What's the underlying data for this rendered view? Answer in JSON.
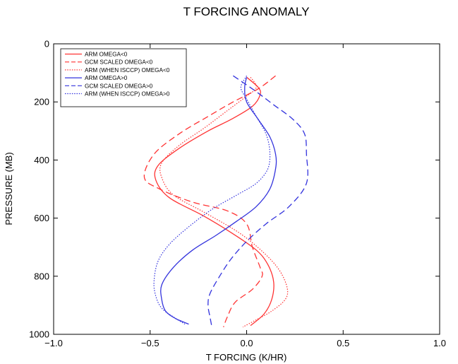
{
  "chart_data": {
    "type": "line",
    "title": "T FORCING ANOMALY",
    "xlabel": "T FORCING (K/HR)",
    "ylabel": "PRESSURE (MB)",
    "xlim": [
      -1.0,
      1.0
    ],
    "ylim": [
      0,
      1000
    ],
    "y_inverted": true,
    "x_ticks": [
      -1.0,
      -0.5,
      0.0,
      0.5,
      1.0
    ],
    "x_tick_labels": [
      "−1.0",
      "−0.5",
      "0.0",
      "0.5",
      "1.0"
    ],
    "y_ticks": [
      0,
      200,
      400,
      600,
      800,
      1000
    ],
    "y_tick_labels": [
      "0",
      "200",
      "400",
      "600",
      "800",
      "1000"
    ],
    "grid": false,
    "legend_position": "top-left",
    "series": [
      {
        "name": "ARM  OMEGA<0",
        "color": "#ff3333",
        "dash": "solid",
        "points": [
          [
            0.0,
            115
          ],
          [
            0.06,
            150
          ],
          [
            0.07,
            175
          ],
          [
            0.03,
            215
          ],
          [
            -0.08,
            260
          ],
          [
            -0.2,
            300
          ],
          [
            -0.35,
            360
          ],
          [
            -0.46,
            420
          ],
          [
            -0.47,
            470
          ],
          [
            -0.4,
            530
          ],
          [
            -0.23,
            590
          ],
          [
            -0.08,
            650
          ],
          [
            0.05,
            710
          ],
          [
            0.11,
            760
          ],
          [
            0.14,
            820
          ],
          [
            0.13,
            880
          ],
          [
            0.09,
            930
          ],
          [
            0.02,
            970
          ]
        ]
      },
      {
        "name": "GCM SCALED OMEGA<0",
        "color": "#ff3333",
        "dash": "dashed",
        "points": [
          [
            0.15,
            110
          ],
          [
            0.06,
            155
          ],
          [
            -0.07,
            200
          ],
          [
            -0.2,
            250
          ],
          [
            -0.35,
            310
          ],
          [
            -0.48,
            380
          ],
          [
            -0.53,
            460
          ],
          [
            -0.45,
            500
          ],
          [
            -0.28,
            545
          ],
          [
            -0.1,
            575
          ],
          [
            0.0,
            620
          ],
          [
            0.03,
            700
          ],
          [
            0.07,
            770
          ],
          [
            0.08,
            800
          ],
          [
            0.03,
            845
          ],
          [
            -0.06,
            890
          ],
          [
            -0.1,
            940
          ],
          [
            -0.12,
            975
          ]
        ]
      },
      {
        "name": "ARM (WHEN ISCCP) OMEGA<0",
        "color": "#ff3333",
        "dash": "dotted",
        "points": [
          [
            0.02,
            115
          ],
          [
            0.05,
            150
          ],
          [
            -0.01,
            185
          ],
          [
            -0.1,
            230
          ],
          [
            -0.22,
            290
          ],
          [
            -0.35,
            350
          ],
          [
            -0.44,
            410
          ],
          [
            -0.44,
            460
          ],
          [
            -0.38,
            520
          ],
          [
            -0.22,
            580
          ],
          [
            -0.04,
            650
          ],
          [
            0.09,
            720
          ],
          [
            0.17,
            780
          ],
          [
            0.21,
            840
          ],
          [
            0.2,
            880
          ],
          [
            0.13,
            920
          ],
          [
            0.05,
            950
          ],
          [
            -0.02,
            975
          ]
        ]
      },
      {
        "name": "ARM OMEGA>0",
        "color": "#3333dd",
        "dash": "solid",
        "points": [
          [
            0.0,
            115
          ],
          [
            -0.01,
            150
          ],
          [
            0.0,
            200
          ],
          [
            0.06,
            260
          ],
          [
            0.12,
            320
          ],
          [
            0.15,
            380
          ],
          [
            0.15,
            430
          ],
          [
            0.12,
            500
          ],
          [
            0.05,
            560
          ],
          [
            -0.05,
            610
          ],
          [
            -0.16,
            660
          ],
          [
            -0.28,
            710
          ],
          [
            -0.38,
            770
          ],
          [
            -0.44,
            830
          ],
          [
            -0.44,
            880
          ],
          [
            -0.42,
            920
          ],
          [
            -0.37,
            945
          ],
          [
            -0.3,
            965
          ]
        ]
      },
      {
        "name": "GCM SCALED OMEGA>0",
        "color": "#3333dd",
        "dash": "dashed",
        "points": [
          [
            -0.07,
            110
          ],
          [
            0.04,
            160
          ],
          [
            0.14,
            210
          ],
          [
            0.24,
            260
          ],
          [
            0.3,
            310
          ],
          [
            0.31,
            380
          ],
          [
            0.31,
            480
          ],
          [
            0.22,
            560
          ],
          [
            0.1,
            620
          ],
          [
            0.0,
            680
          ],
          [
            -0.08,
            740
          ],
          [
            -0.14,
            800
          ],
          [
            -0.19,
            860
          ],
          [
            -0.2,
            900
          ],
          [
            -0.19,
            940
          ],
          [
            -0.18,
            975
          ]
        ]
      },
      {
        "name": "ARM (WHEN ISCCP) OMEGA>0",
        "color": "#3333dd",
        "dash": "dotted",
        "points": [
          [
            0.0,
            110
          ],
          [
            -0.03,
            150
          ],
          [
            0.0,
            190
          ],
          [
            0.05,
            250
          ],
          [
            0.1,
            310
          ],
          [
            0.12,
            370
          ],
          [
            0.11,
            430
          ],
          [
            0.05,
            480
          ],
          [
            -0.05,
            520
          ],
          [
            -0.18,
            570
          ],
          [
            -0.3,
            630
          ],
          [
            -0.4,
            690
          ],
          [
            -0.46,
            750
          ],
          [
            -0.48,
            820
          ],
          [
            -0.47,
            870
          ],
          [
            -0.44,
            910
          ],
          [
            -0.38,
            940
          ],
          [
            -0.32,
            965
          ]
        ]
      }
    ]
  }
}
